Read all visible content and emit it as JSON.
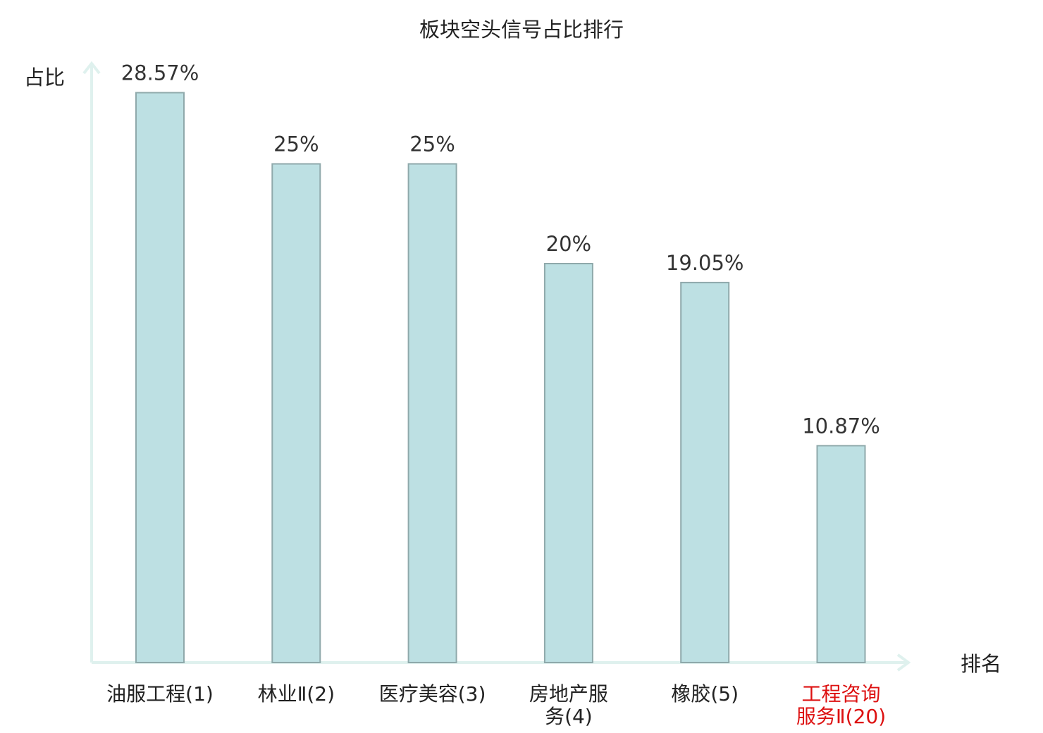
{
  "chart_data": {
    "type": "bar",
    "title": "板块空头信号占比排行",
    "ylabel": "占比",
    "xlabel": "排名",
    "ylim": [
      0,
      30
    ],
    "grid": false,
    "categories": [
      [
        "油服工程(1)"
      ],
      [
        "林业Ⅱ(2)"
      ],
      [
        "医疗美容(3)"
      ],
      [
        "房地产服",
        "务(4)"
      ],
      [
        "橡胶(5)"
      ],
      [
        "工程咨询",
        "服务Ⅱ(20)"
      ]
    ],
    "values": [
      28.57,
      25,
      25,
      20,
      19.05,
      10.87
    ],
    "value_labels": [
      "28.57%",
      "25%",
      "25%",
      "20%",
      "19.05%",
      "10.87%"
    ],
    "highlight_index": 5,
    "colors": {
      "bar_fill": "#bde0e3",
      "bar_stroke": "#8fa9ab",
      "axis": "#dff1ee",
      "category_text": "#222222",
      "highlight_text": "#dd1111"
    }
  }
}
